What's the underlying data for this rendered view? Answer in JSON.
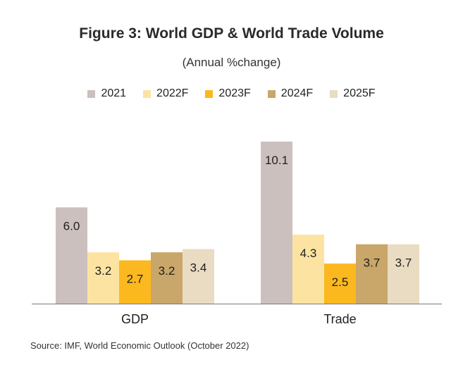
{
  "chart_data": {
    "type": "bar",
    "title": "Figure 3:  World GDP & World Trade Volume",
    "subtitle": "(Annual  %change)",
    "categories": [
      "GDP",
      "Trade"
    ],
    "series": [
      {
        "name": "2021",
        "color": "#ccc0bf",
        "values": [
          6.0,
          10.1
        ]
      },
      {
        "name": "2022F",
        "color": "#fde3a2",
        "values": [
          3.2,
          4.3
        ]
      },
      {
        "name": "2023F",
        "color": "#fbb91f",
        "values": [
          2.7,
          2.5
        ]
      },
      {
        "name": "2024F",
        "color": "#c9a669",
        "values": [
          3.2,
          3.7
        ]
      },
      {
        "name": "2025F",
        "color": "#eadcc3",
        "values": [
          3.4,
          3.7
        ]
      }
    ],
    "xlabel": "",
    "ylabel": "",
    "ylim": [
      0,
      10.1
    ],
    "grid": false,
    "legend_position": "top-center",
    "data_labels": [
      "6.0",
      "3.2",
      "2.7",
      "3.2",
      "3.4",
      "10.1",
      "4.3",
      "2.5",
      "3.7",
      "3.7"
    ]
  },
  "source": "Source: IMF, World Economic Outlook (October 2022)"
}
